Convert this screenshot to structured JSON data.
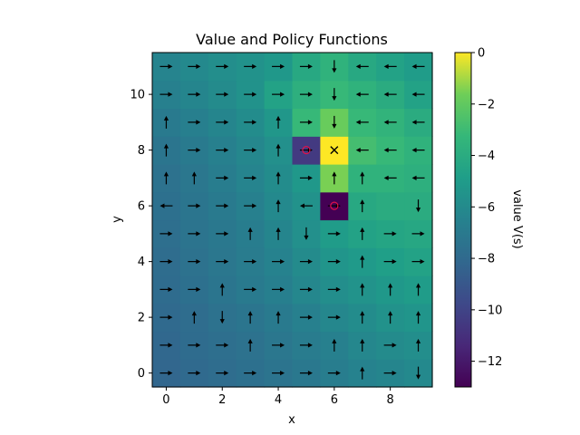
{
  "chart_data": {
    "type": "heatmap",
    "title": "Value and Policy Functions",
    "xlabel": "x",
    "ylabel": "y",
    "colorbar_label": "value V(s)",
    "colormap": "viridis",
    "xlim": [
      -0.5,
      9.5
    ],
    "ylim": [
      -0.5,
      11.5
    ],
    "vlim": [
      -13,
      0
    ],
    "x_ticks": [
      0,
      2,
      4,
      6,
      8
    ],
    "y_ticks": [
      0,
      2,
      4,
      6,
      8,
      10
    ],
    "colorbar_ticks": [
      0,
      -2,
      -4,
      -6,
      -8,
      -10,
      -12
    ],
    "grid": false,
    "value_grid_rows_y0_to_y11": [
      [
        -8.2,
        -8.0,
        -7.8,
        -7.6,
        -7.4,
        -7.1,
        -6.8,
        -6.5,
        -6.3,
        -6.1
      ],
      [
        -8.1,
        -7.9,
        -7.7,
        -7.5,
        -7.2,
        -6.9,
        -6.6,
        -6.2,
        -6.0,
        -5.8
      ],
      [
        -8.0,
        -7.8,
        -7.5,
        -7.3,
        -7.0,
        -6.6,
        -6.2,
        -5.9,
        -5.6,
        -5.4
      ],
      [
        -7.9,
        -7.6,
        -7.3,
        -7.0,
        -6.7,
        -6.2,
        -5.8,
        -5.5,
        -5.2,
        -5.0
      ],
      [
        -7.8,
        -7.5,
        -7.2,
        -6.9,
        -6.5,
        -6.0,
        -5.4,
        -5.1,
        -4.8,
        -4.6
      ],
      [
        -7.7,
        -7.4,
        -7.1,
        -6.8,
        -6.3,
        -5.7,
        -5.0,
        -4.6,
        -4.4,
        -4.3
      ],
      [
        -7.6,
        -7.3,
        -7.0,
        -6.6,
        -6.1,
        -5.6,
        -13.0,
        -4.2,
        -4.0,
        -4.0
      ],
      [
        -7.5,
        -7.2,
        -6.8,
        -6.4,
        -5.9,
        -5.2,
        -1.5,
        -3.6,
        -3.6,
        -3.8
      ],
      [
        -7.3,
        -7.0,
        -6.6,
        -6.2,
        -5.7,
        -10.5,
        0.0,
        -2.8,
        -3.2,
        -3.6
      ],
      [
        -7.0,
        -6.7,
        -6.3,
        -5.9,
        -5.3,
        -3.2,
        -1.8,
        -3.2,
        -3.5,
        -4.0
      ],
      [
        -6.6,
        -6.3,
        -6.0,
        -5.6,
        -4.6,
        -3.8,
        -3.2,
        -3.6,
        -4.0,
        -4.6
      ],
      [
        -6.4,
        -6.1,
        -5.8,
        -5.6,
        -5.2,
        -4.2,
        -3.6,
        -4.2,
        -4.6,
        -5.0
      ]
    ],
    "policy_arrows": [
      {
        "x": 0,
        "y": 0,
        "dir": "right"
      },
      {
        "x": 1,
        "y": 0,
        "dir": "right"
      },
      {
        "x": 2,
        "y": 0,
        "dir": "right"
      },
      {
        "x": 3,
        "y": 0,
        "dir": "right"
      },
      {
        "x": 4,
        "y": 0,
        "dir": "right"
      },
      {
        "x": 5,
        "y": 0,
        "dir": "right"
      },
      {
        "x": 6,
        "y": 0,
        "dir": "right"
      },
      {
        "x": 7,
        "y": 0,
        "dir": "up"
      },
      {
        "x": 8,
        "y": 0,
        "dir": "right"
      },
      {
        "x": 9,
        "y": 0,
        "dir": "down"
      },
      {
        "x": 0,
        "y": 1,
        "dir": "right"
      },
      {
        "x": 1,
        "y": 1,
        "dir": "right"
      },
      {
        "x": 2,
        "y": 1,
        "dir": "right"
      },
      {
        "x": 3,
        "y": 1,
        "dir": "up"
      },
      {
        "x": 4,
        "y": 1,
        "dir": "right"
      },
      {
        "x": 5,
        "y": 1,
        "dir": "right"
      },
      {
        "x": 6,
        "y": 1,
        "dir": "up"
      },
      {
        "x": 7,
        "y": 1,
        "dir": "up"
      },
      {
        "x": 8,
        "y": 1,
        "dir": "right"
      },
      {
        "x": 9,
        "y": 1,
        "dir": "up"
      },
      {
        "x": 0,
        "y": 2,
        "dir": "right"
      },
      {
        "x": 1,
        "y": 2,
        "dir": "up"
      },
      {
        "x": 2,
        "y": 2,
        "dir": "down"
      },
      {
        "x": 3,
        "y": 2,
        "dir": "up"
      },
      {
        "x": 4,
        "y": 2,
        "dir": "up"
      },
      {
        "x": 5,
        "y": 2,
        "dir": "right"
      },
      {
        "x": 6,
        "y": 2,
        "dir": "right"
      },
      {
        "x": 7,
        "y": 2,
        "dir": "up"
      },
      {
        "x": 8,
        "y": 2,
        "dir": "up"
      },
      {
        "x": 9,
        "y": 2,
        "dir": "up"
      },
      {
        "x": 0,
        "y": 3,
        "dir": "right"
      },
      {
        "x": 1,
        "y": 3,
        "dir": "right"
      },
      {
        "x": 2,
        "y": 3,
        "dir": "up"
      },
      {
        "x": 3,
        "y": 3,
        "dir": "right"
      },
      {
        "x": 4,
        "y": 3,
        "dir": "right"
      },
      {
        "x": 5,
        "y": 3,
        "dir": "right"
      },
      {
        "x": 6,
        "y": 3,
        "dir": "right"
      },
      {
        "x": 7,
        "y": 3,
        "dir": "up"
      },
      {
        "x": 8,
        "y": 3,
        "dir": "up"
      },
      {
        "x": 9,
        "y": 3,
        "dir": "up"
      },
      {
        "x": 0,
        "y": 4,
        "dir": "right"
      },
      {
        "x": 1,
        "y": 4,
        "dir": "right"
      },
      {
        "x": 2,
        "y": 4,
        "dir": "right"
      },
      {
        "x": 3,
        "y": 4,
        "dir": "right"
      },
      {
        "x": 4,
        "y": 4,
        "dir": "right"
      },
      {
        "x": 5,
        "y": 4,
        "dir": "right"
      },
      {
        "x": 6,
        "y": 4,
        "dir": "right"
      },
      {
        "x": 7,
        "y": 4,
        "dir": "up"
      },
      {
        "x": 8,
        "y": 4,
        "dir": "right"
      },
      {
        "x": 9,
        "y": 4,
        "dir": "right"
      },
      {
        "x": 0,
        "y": 5,
        "dir": "right"
      },
      {
        "x": 1,
        "y": 5,
        "dir": "right"
      },
      {
        "x": 2,
        "y": 5,
        "dir": "right"
      },
      {
        "x": 3,
        "y": 5,
        "dir": "up"
      },
      {
        "x": 4,
        "y": 5,
        "dir": "up"
      },
      {
        "x": 5,
        "y": 5,
        "dir": "down"
      },
      {
        "x": 6,
        "y": 5,
        "dir": "right"
      },
      {
        "x": 7,
        "y": 5,
        "dir": "up"
      },
      {
        "x": 8,
        "y": 5,
        "dir": "right"
      },
      {
        "x": 9,
        "y": 5,
        "dir": "right"
      },
      {
        "x": 0,
        "y": 6,
        "dir": "left"
      },
      {
        "x": 1,
        "y": 6,
        "dir": "right"
      },
      {
        "x": 2,
        "y": 6,
        "dir": "right"
      },
      {
        "x": 3,
        "y": 6,
        "dir": "right"
      },
      {
        "x": 4,
        "y": 6,
        "dir": "up"
      },
      {
        "x": 5,
        "y": 6,
        "dir": "left"
      },
      {
        "x": 6,
        "y": 6,
        "dir": "right"
      },
      {
        "x": 7,
        "y": 6,
        "dir": "up"
      },
      {
        "x": 9,
        "y": 6,
        "dir": "down"
      },
      {
        "x": 0,
        "y": 7,
        "dir": "up"
      },
      {
        "x": 1,
        "y": 7,
        "dir": "up"
      },
      {
        "x": 2,
        "y": 7,
        "dir": "right"
      },
      {
        "x": 3,
        "y": 7,
        "dir": "right"
      },
      {
        "x": 4,
        "y": 7,
        "dir": "up"
      },
      {
        "x": 5,
        "y": 7,
        "dir": "right"
      },
      {
        "x": 6,
        "y": 7,
        "dir": "up"
      },
      {
        "x": 7,
        "y": 7,
        "dir": "up"
      },
      {
        "x": 8,
        "y": 7,
        "dir": "left"
      },
      {
        "x": 9,
        "y": 7,
        "dir": "left"
      },
      {
        "x": 0,
        "y": 8,
        "dir": "up"
      },
      {
        "x": 1,
        "y": 8,
        "dir": "right"
      },
      {
        "x": 2,
        "y": 8,
        "dir": "right"
      },
      {
        "x": 3,
        "y": 8,
        "dir": "right"
      },
      {
        "x": 4,
        "y": 8,
        "dir": "up"
      },
      {
        "x": 5,
        "y": 8,
        "dir": "right"
      },
      {
        "x": 7,
        "y": 8,
        "dir": "left"
      },
      {
        "x": 8,
        "y": 8,
        "dir": "left"
      },
      {
        "x": 9,
        "y": 8,
        "dir": "left"
      },
      {
        "x": 0,
        "y": 9,
        "dir": "up"
      },
      {
        "x": 1,
        "y": 9,
        "dir": "right"
      },
      {
        "x": 2,
        "y": 9,
        "dir": "right"
      },
      {
        "x": 3,
        "y": 9,
        "dir": "right"
      },
      {
        "x": 4,
        "y": 9,
        "dir": "up"
      },
      {
        "x": 5,
        "y": 9,
        "dir": "right"
      },
      {
        "x": 6,
        "y": 9,
        "dir": "down"
      },
      {
        "x": 7,
        "y": 9,
        "dir": "left"
      },
      {
        "x": 8,
        "y": 9,
        "dir": "left"
      },
      {
        "x": 9,
        "y": 9,
        "dir": "left"
      },
      {
        "x": 0,
        "y": 10,
        "dir": "right"
      },
      {
        "x": 1,
        "y": 10,
        "dir": "right"
      },
      {
        "x": 2,
        "y": 10,
        "dir": "right"
      },
      {
        "x": 3,
        "y": 10,
        "dir": "right"
      },
      {
        "x": 4,
        "y": 10,
        "dir": "right"
      },
      {
        "x": 5,
        "y": 10,
        "dir": "right"
      },
      {
        "x": 6,
        "y": 10,
        "dir": "down"
      },
      {
        "x": 7,
        "y": 10,
        "dir": "left"
      },
      {
        "x": 8,
        "y": 10,
        "dir": "left"
      },
      {
        "x": 9,
        "y": 10,
        "dir": "left"
      },
      {
        "x": 0,
        "y": 11,
        "dir": "right"
      },
      {
        "x": 1,
        "y": 11,
        "dir": "right"
      },
      {
        "x": 2,
        "y": 11,
        "dir": "right"
      },
      {
        "x": 3,
        "y": 11,
        "dir": "right"
      },
      {
        "x": 4,
        "y": 11,
        "dir": "right"
      },
      {
        "x": 5,
        "y": 11,
        "dir": "right"
      },
      {
        "x": 6,
        "y": 11,
        "dir": "down"
      },
      {
        "x": 7,
        "y": 11,
        "dir": "left"
      },
      {
        "x": 8,
        "y": 11,
        "dir": "left"
      },
      {
        "x": 9,
        "y": 11,
        "dir": "left"
      }
    ],
    "goal_marker": {
      "x": 6,
      "y": 8,
      "symbol": "x"
    },
    "hazard_markers": [
      {
        "x": 5,
        "y": 8
      },
      {
        "x": 6,
        "y": 6
      }
    ],
    "colors": {
      "hazard_circle": "#e0114a",
      "arrow": "#000000"
    }
  }
}
